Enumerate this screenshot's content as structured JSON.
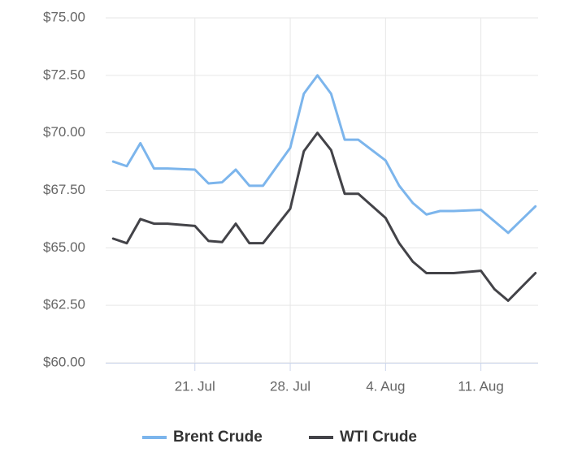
{
  "chart_data": {
    "type": "line",
    "x": [
      15,
      16,
      17,
      18,
      19,
      21,
      22,
      23,
      24,
      25,
      26,
      28,
      29,
      30,
      31,
      32,
      33,
      35,
      36,
      37,
      38,
      39,
      40,
      42,
      43,
      44,
      46
    ],
    "series": [
      {
        "name": "Brent Crude",
        "color": "#7cb5ec",
        "values": [
          68.75,
          68.55,
          69.55,
          68.45,
          68.45,
          68.4,
          67.8,
          67.85,
          68.4,
          67.7,
          67.7,
          69.35,
          71.7,
          72.5,
          71.7,
          69.7,
          69.7,
          68.8,
          67.7,
          66.95,
          66.45,
          66.6,
          66.6,
          66.65,
          66.15,
          65.65,
          66.8
        ]
      },
      {
        "name": "WTI Crude",
        "color": "#434348",
        "values": [
          65.4,
          65.2,
          66.25,
          66.05,
          66.05,
          65.95,
          65.3,
          65.25,
          66.05,
          65.2,
          65.2,
          66.7,
          69.2,
          70.0,
          69.25,
          67.35,
          67.35,
          66.3,
          65.2,
          64.4,
          63.9,
          63.9,
          63.9,
          64.0,
          63.2,
          62.7,
          63.9
        ]
      }
    ],
    "xlim": [
      14.45,
      46.2
    ],
    "xticks": [
      {
        "value": 21,
        "label": "21. Jul"
      },
      {
        "value": 28,
        "label": "28. Jul"
      },
      {
        "value": 35,
        "label": "4. Aug"
      },
      {
        "value": 42,
        "label": "11. Aug"
      }
    ],
    "ylim": [
      60,
      75
    ],
    "yticks": [
      {
        "value": 60,
        "label": "$60.00"
      },
      {
        "value": 62.5,
        "label": "$62.50"
      },
      {
        "value": 65,
        "label": "$65.00"
      },
      {
        "value": 67.5,
        "label": "$67.50"
      },
      {
        "value": 70,
        "label": "$70.00"
      },
      {
        "value": 72.5,
        "label": "$72.50"
      },
      {
        "value": 75,
        "label": "$75.00"
      }
    ],
    "grid": true,
    "legend": "bottom"
  }
}
